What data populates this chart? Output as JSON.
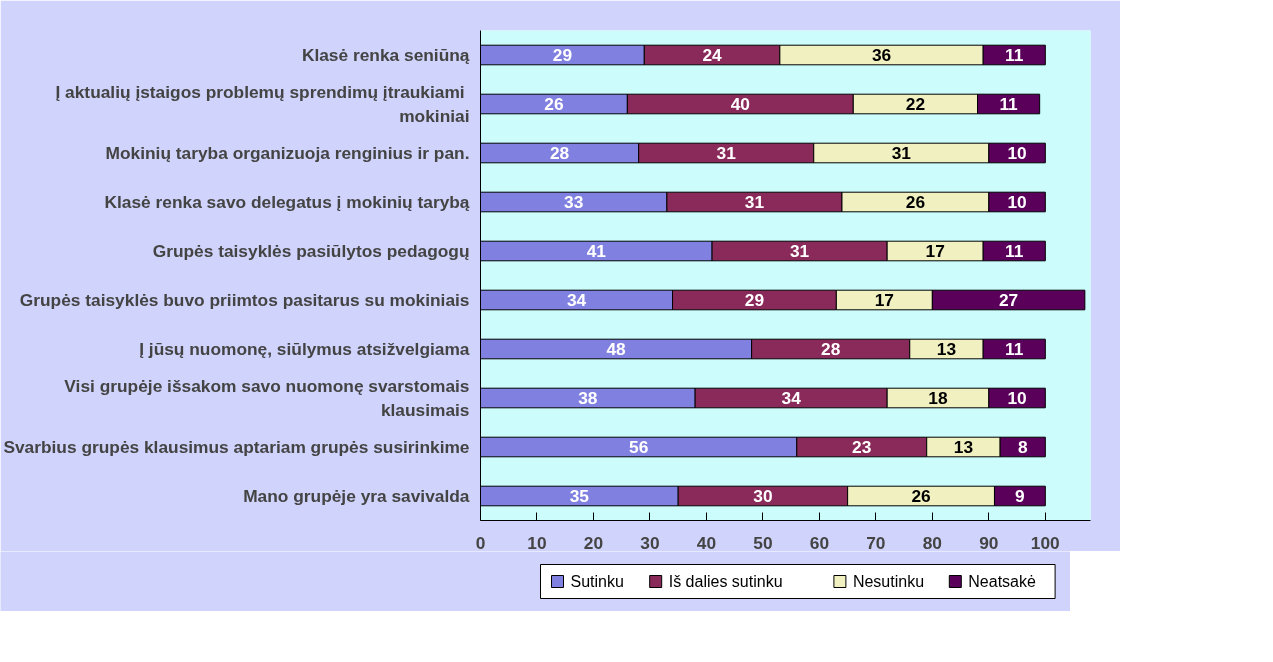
{
  "chart_data": {
    "type": "bar",
    "orientation": "horizontal",
    "stacked": true,
    "data_labels": true,
    "legend": "bottom",
    "grid": false,
    "categories": [
      "Klasė renka seniūną",
      "Į aktualių įstaigos problemų  sprendimų įtraukiami mokiniai",
      "Mokinių taryba organizuoja renginius ir pan.",
      "Klasė renka savo delegatus į mokinių tarybą",
      "Grupės taisyklės pasiūlytos pedagogų",
      "Grupės taisyklės buvo priimtos pasitarus su mokiniais",
      "Į jūsų nuomonę, siūlymus atsižvelgiama",
      "Visi grupėje išsakom savo nuomonę svarstomais klausimais",
      "Svarbius grupės klausimus aptariam grupės susirinkime",
      "Mano grupėje yra savivalda"
    ],
    "series": [
      {
        "name": "Sutinku",
        "color": "#8080e0",
        "values": [
          29,
          26,
          28,
          33,
          41,
          34,
          48,
          38,
          56,
          35
        ]
      },
      {
        "name": "Iš dalies sutinku",
        "color": "#8a2a5a",
        "values": [
          24,
          40,
          31,
          31,
          31,
          29,
          28,
          34,
          23,
          30
        ]
      },
      {
        "name": "Nesutinku",
        "color": "#f0f0c0",
        "values": [
          36,
          22,
          31,
          26,
          17,
          17,
          13,
          18,
          13,
          26
        ]
      },
      {
        "name": "Neatsakė",
        "color": "#5a005a",
        "values": [
          11,
          11,
          10,
          10,
          11,
          27,
          11,
          10,
          8,
          9
        ]
      }
    ],
    "xlim": [
      0,
      108
    ],
    "xticks": [
      0,
      10,
      20,
      30,
      40,
      50,
      60,
      70,
      80,
      90,
      100
    ]
  }
}
